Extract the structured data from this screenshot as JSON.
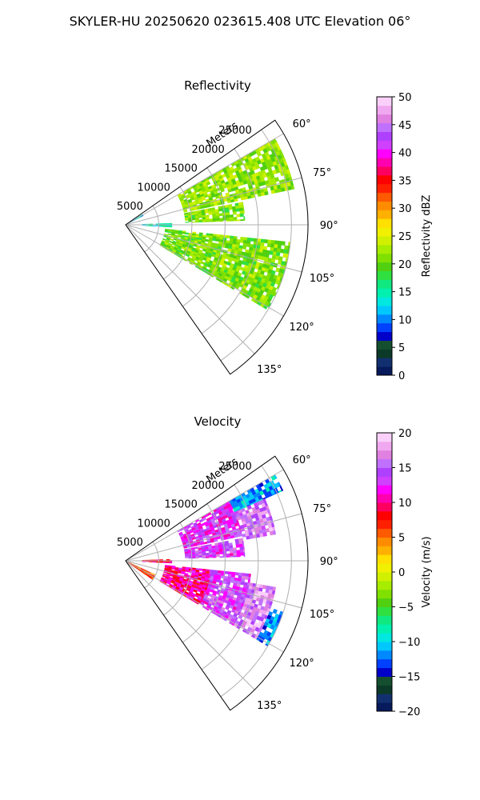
{
  "figure_title": "SKYLER-HU  20250620  023615.408 UTC Elevation 06°",
  "chart_data": [
    {
      "type": "heatmap",
      "title": "Reflectivity",
      "projection": "polar sector (PPI)",
      "radial_label": "Meters",
      "radial_ticks": [
        "5000",
        "10000",
        "15000",
        "20000",
        "25000"
      ],
      "radial_tick_values": [
        5000,
        10000,
        15000,
        20000,
        25000
      ],
      "azimuth_ticks": [
        "60°",
        "75°",
        "90°",
        "105°",
        "120°",
        "135°"
      ],
      "azimuth_tick_values": [
        60,
        75,
        90,
        105,
        120,
        135
      ],
      "azimuth_range_deg": [
        55,
        145
      ],
      "range_max_m": 27500,
      "grid": true,
      "colorbar": {
        "label": "Reflectivity dBZ",
        "range": [
          0,
          50
        ],
        "ticks": [
          "0",
          "5",
          "10",
          "15",
          "20",
          "25",
          "30",
          "35",
          "40",
          "45",
          "50"
        ],
        "tick_values": [
          0,
          5,
          10,
          15,
          20,
          25,
          30,
          35,
          40,
          45,
          50
        ],
        "colors": [
          "#061a5c",
          "#123070",
          "#0b3a28",
          "#145030",
          "#0000c8",
          "#0040ff",
          "#0088ff",
          "#00c8ff",
          "#00e8e0",
          "#00f0b0",
          "#10e880",
          "#30e040",
          "#50d010",
          "#80e000",
          "#a8ec00",
          "#d0f000",
          "#f0f000",
          "#ffe000",
          "#ffb000",
          "#ff8c00",
          "#ff5a00",
          "#ff2000",
          "#ff0000",
          "#ff0060",
          "#ff00b0",
          "#ff00ff",
          "#d040ff",
          "#b040ff",
          "#c070ff",
          "#e080e0",
          "#f0a8f0",
          "#fad0fa"
        ]
      },
      "echo_sectors": [
        {
          "az": [
            60,
            78
          ],
          "r": [
            9000,
            26000
          ],
          "value": 22
        },
        {
          "az": [
            79,
            88
          ],
          "r": [
            9000,
            18000
          ],
          "value": 21
        },
        {
          "az": [
            88,
            93
          ],
          "r": [
            2500,
            7000
          ],
          "value": 14
        },
        {
          "az": [
            96,
            121
          ],
          "r": [
            6000,
            25000
          ],
          "value": 21
        },
        {
          "az": [
            58,
            63
          ],
          "r": [
            0,
            3000
          ],
          "value": 12
        }
      ]
    },
    {
      "type": "heatmap",
      "title": "Velocity",
      "projection": "polar sector (PPI)",
      "radial_label": "Meters",
      "radial_ticks": [
        "5000",
        "10000",
        "15000",
        "20000",
        "25000"
      ],
      "radial_tick_values": [
        5000,
        10000,
        15000,
        20000,
        25000
      ],
      "azimuth_ticks": [
        "60°",
        "75°",
        "90°",
        "105°",
        "120°",
        "135°"
      ],
      "azimuth_tick_values": [
        60,
        75,
        90,
        105,
        120,
        135
      ],
      "azimuth_range_deg": [
        55,
        145
      ],
      "range_max_m": 27500,
      "grid": true,
      "colorbar": {
        "label": "Velocity (m/s)",
        "range": [
          -20,
          20
        ],
        "ticks": [
          "−20",
          "−15",
          "−10",
          "−5",
          "0",
          "5",
          "10",
          "15",
          "20"
        ],
        "tick_values": [
          -20,
          -15,
          -10,
          -5,
          0,
          5,
          10,
          15,
          20
        ],
        "colors": [
          "#061a5c",
          "#123070",
          "#0b3a28",
          "#145030",
          "#0000c8",
          "#0040ff",
          "#0088ff",
          "#00c8ff",
          "#00e8e0",
          "#00f0b0",
          "#10e880",
          "#30e040",
          "#50d010",
          "#80e000",
          "#a8ec00",
          "#d0f000",
          "#f0f000",
          "#ffe000",
          "#ffb000",
          "#ff8c00",
          "#ff5a00",
          "#ff2000",
          "#ff0000",
          "#ff0060",
          "#ff00b0",
          "#ff00ff",
          "#d040ff",
          "#b040ff",
          "#c070ff",
          "#e080e0",
          "#f0a8f0",
          "#fad0fa"
        ]
      },
      "echo_sectors": [
        {
          "az": [
            60,
            66
          ],
          "r": [
            18000,
            26000
          ],
          "value": -11
        },
        {
          "az": [
            60,
            78
          ],
          "r": [
            9000,
            18000
          ],
          "value": 13
        },
        {
          "az": [
            66,
            80
          ],
          "r": [
            18000,
            23000
          ],
          "value": 16
        },
        {
          "az": [
            79,
            88
          ],
          "r": [
            9000,
            18000
          ],
          "value": 14
        },
        {
          "az": [
            88,
            93
          ],
          "r": [
            2500,
            7000
          ],
          "value": 9
        },
        {
          "az": [
            96,
            121
          ],
          "r": [
            6000,
            13000
          ],
          "value": 10
        },
        {
          "az": [
            96,
            121
          ],
          "r": [
            13000,
            19000
          ],
          "value": 14
        },
        {
          "az": [
            100,
            121
          ],
          "r": [
            19000,
            23000
          ],
          "value": 17
        },
        {
          "az": [
            108,
            121
          ],
          "r": [
            23000,
            25000
          ],
          "value": -12
        },
        {
          "az": [
            115,
            125
          ],
          "r": [
            0,
            5000
          ],
          "value": 6
        }
      ]
    }
  ]
}
